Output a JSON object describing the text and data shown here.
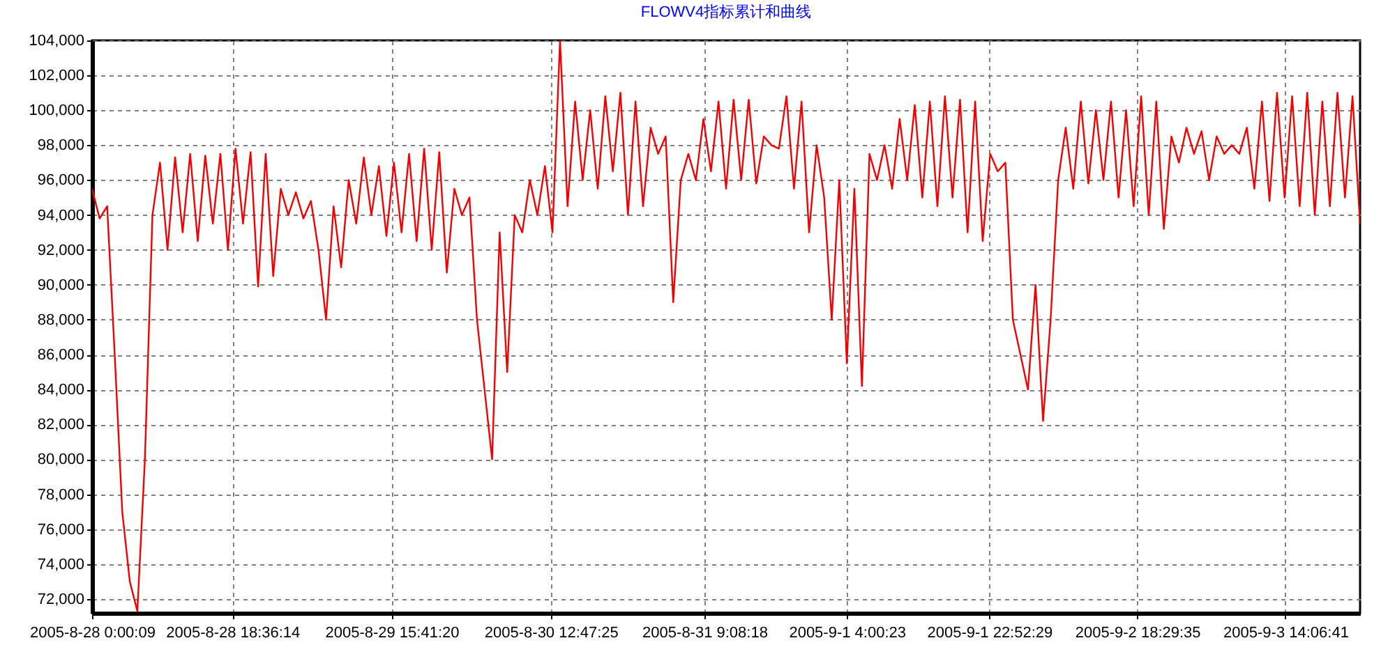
{
  "chart_data": {
    "type": "line",
    "title": "FLOWV4指标累计和曲线",
    "x": [
      "2005-08-28T00:00",
      "2005-08-28T01:00",
      "2005-08-28T02:00",
      "2005-08-28T03:00",
      "2005-08-28T04:00",
      "2005-08-28T05:00",
      "2005-08-28T06:00",
      "2005-08-28T07:00",
      "2005-08-28T08:00",
      "2005-08-28T09:00",
      "2005-08-28T10:00",
      "2005-08-28T11:00",
      "2005-08-28T12:00",
      "2005-08-28T13:00",
      "2005-08-28T14:00",
      "2005-08-28T15:00",
      "2005-08-28T16:00",
      "2005-08-28T17:00",
      "2005-08-28T18:00",
      "2005-08-28T19:00",
      "2005-08-28T20:00",
      "2005-08-28T21:00",
      "2005-08-28T22:00",
      "2005-08-28T23:00",
      "2005-08-29T00:00",
      "2005-08-29T01:00",
      "2005-08-29T02:00",
      "2005-08-29T03:00",
      "2005-08-29T04:00",
      "2005-08-29T05:00",
      "2005-08-29T06:00",
      "2005-08-29T07:00",
      "2005-08-29T08:00",
      "2005-08-29T09:00",
      "2005-08-29T10:00",
      "2005-08-29T11:00",
      "2005-08-29T12:00",
      "2005-08-29T13:00",
      "2005-08-29T14:00",
      "2005-08-29T15:00",
      "2005-08-29T16:00",
      "2005-08-29T17:00",
      "2005-08-29T18:00",
      "2005-08-29T19:00",
      "2005-08-29T20:00",
      "2005-08-29T21:00",
      "2005-08-29T22:00",
      "2005-08-29T23:00",
      "2005-08-30T00:00",
      "2005-08-30T01:00",
      "2005-08-30T02:00",
      "2005-08-30T03:00",
      "2005-08-30T04:00",
      "2005-08-30T05:00",
      "2005-08-30T06:00",
      "2005-08-30T07:00",
      "2005-08-30T08:00",
      "2005-08-30T09:00",
      "2005-08-30T10:00",
      "2005-08-30T11:00",
      "2005-08-30T12:00",
      "2005-08-30T13:00",
      "2005-08-30T14:00",
      "2005-08-30T15:00",
      "2005-08-30T16:00",
      "2005-08-30T17:00",
      "2005-08-30T18:00",
      "2005-08-30T19:00",
      "2005-08-30T20:00",
      "2005-08-30T21:00",
      "2005-08-30T22:00",
      "2005-08-30T23:00",
      "2005-08-31T00:00",
      "2005-08-31T01:00",
      "2005-08-31T02:00",
      "2005-08-31T03:00",
      "2005-08-31T04:00",
      "2005-08-31T05:00",
      "2005-08-31T06:00",
      "2005-08-31T07:00",
      "2005-08-31T08:00",
      "2005-08-31T09:00",
      "2005-08-31T10:00",
      "2005-08-31T11:00",
      "2005-08-31T12:00",
      "2005-08-31T13:00",
      "2005-08-31T14:00",
      "2005-08-31T15:00",
      "2005-08-31T16:00",
      "2005-08-31T17:00",
      "2005-08-31T18:00",
      "2005-08-31T19:00",
      "2005-08-31T20:00",
      "2005-08-31T21:00",
      "2005-08-31T22:00",
      "2005-08-31T23:00",
      "2005-09-01T00:00",
      "2005-09-01T01:00",
      "2005-09-01T02:00",
      "2005-09-01T03:00",
      "2005-09-01T04:00",
      "2005-09-01T05:00",
      "2005-09-01T06:00",
      "2005-09-01T07:00",
      "2005-09-01T08:00",
      "2005-09-01T09:00",
      "2005-09-01T10:00",
      "2005-09-01T11:00",
      "2005-09-01T12:00",
      "2005-09-01T13:00",
      "2005-09-01T14:00",
      "2005-09-01T15:00",
      "2005-09-01T16:00",
      "2005-09-01T17:00",
      "2005-09-01T18:00",
      "2005-09-01T19:00",
      "2005-09-01T20:00",
      "2005-09-01T21:00",
      "2005-09-01T22:00",
      "2005-09-01T23:00",
      "2005-09-02T00:00",
      "2005-09-02T01:00",
      "2005-09-02T02:00",
      "2005-09-02T03:00",
      "2005-09-02T04:00",
      "2005-09-02T05:00",
      "2005-09-02T06:00",
      "2005-09-02T07:00",
      "2005-09-02T08:00",
      "2005-09-02T09:00",
      "2005-09-02T10:00",
      "2005-09-02T11:00",
      "2005-09-02T12:00",
      "2005-09-02T13:00",
      "2005-09-02T14:00",
      "2005-09-02T15:00",
      "2005-09-02T16:00",
      "2005-09-02T17:00",
      "2005-09-02T18:00",
      "2005-09-02T19:00",
      "2005-09-02T20:00",
      "2005-09-02T21:00",
      "2005-09-02T22:00",
      "2005-09-02T23:00",
      "2005-09-03T00:00",
      "2005-09-03T01:00",
      "2005-09-03T02:00",
      "2005-09-03T03:00",
      "2005-09-03T04:00",
      "2005-09-03T05:00",
      "2005-09-03T06:00",
      "2005-09-03T07:00",
      "2005-09-03T08:00",
      "2005-09-03T09:00",
      "2005-09-03T10:00",
      "2005-09-03T11:00",
      "2005-09-03T12:00",
      "2005-09-03T13:00",
      "2005-09-03T14:00",
      "2005-09-03T15:00",
      "2005-09-03T16:00",
      "2005-09-03T17:00",
      "2005-09-03T18:00",
      "2005-09-03T19:00",
      "2005-09-03T20:00",
      "2005-09-03T21:00",
      "2005-09-03T22:00",
      "2005-09-03T23:00",
      "2005-09-04T00:00"
    ],
    "series": [
      {
        "color": "#f50000",
        "values": [
          95500,
          93800,
          94500,
          86000,
          77000,
          73000,
          71300,
          80000,
          94000,
          97000,
          92000,
          97300,
          93000,
          97500,
          92500,
          97400,
          93500,
          97500,
          92000,
          97800,
          93500,
          97600,
          89900,
          97500,
          90500,
          95500,
          94000,
          95300,
          93800,
          94800,
          92000,
          88000,
          94500,
          91000,
          96000,
          93500,
          97300,
          94000,
          96800,
          92800,
          97000,
          93000,
          97500,
          92500,
          97800,
          92000,
          97600,
          90700,
          95500,
          94000,
          95000,
          88000,
          84000,
          80000,
          93000,
          85000,
          94000,
          93000,
          96000,
          94000,
          96800,
          93000,
          104000,
          94500,
          100500,
          96000,
          100000,
          95500,
          100800,
          96500,
          101000,
          94000,
          100500,
          94500,
          99000,
          97500,
          98500,
          89000,
          96000,
          97500,
          96000,
          99500,
          96500,
          100500,
          95500,
          100600,
          96000,
          100600,
          95800,
          98500,
          98000,
          97800,
          100800,
          95500,
          100500,
          93000,
          98000,
          95000,
          88000,
          96000,
          85500,
          95500,
          84200,
          97500,
          96000,
          98000,
          95500,
          99500,
          96000,
          100300,
          95000,
          100500,
          94500,
          100800,
          95000,
          100600,
          93000,
          100500,
          92500,
          97500,
          96500,
          97000,
          88000,
          86000,
          84000,
          90000,
          82200,
          88000,
          96000,
          99000,
          95500,
          100500,
          95800,
          100000,
          96000,
          100500,
          95000,
          100000,
          94500,
          100800,
          94000,
          100500,
          93200,
          98500,
          97000,
          99000,
          97500,
          98800,
          96000,
          98500,
          97500,
          98000,
          97500,
          99000,
          95500,
          100500,
          94800,
          101000,
          95000,
          100800,
          94500,
          101000,
          94000,
          100500,
          94500,
          101000,
          95000,
          100800,
          93500
        ]
      }
    ],
    "xlim": [
      "2005-08-28T00:00",
      "2005-09-04T00:00:09"
    ],
    "xticks": [
      {
        "value": "2005-08-28T00:00:09",
        "label": "2005-8-28 0:00:09"
      },
      {
        "value": "2005-08-28T18:36:14",
        "label": "2005-8-28 18:36:14"
      },
      {
        "value": "2005-08-29T15:41:20",
        "label": "2005-8-29 15:41:20"
      },
      {
        "value": "2005-08-30T12:47:25",
        "label": "2005-8-30 12:47:25"
      },
      {
        "value": "2005-08-31T09:08:18",
        "label": "2005-8-31 9:08:18"
      },
      {
        "value": "2005-09-01T04:00:23",
        "label": "2005-9-1 4:00:23"
      },
      {
        "value": "2005-09-01T22:52:29",
        "label": "2005-9-1 22:52:29"
      },
      {
        "value": "2005-09-02T18:29:35",
        "label": "2005-9-2 18:29:35"
      },
      {
        "value": "2005-09-03T14:06:41",
        "label": "2005-9-3 14:06:41"
      }
    ],
    "ylim": [
      71200,
      104000
    ],
    "yticks": [
      {
        "value": 72000,
        "label": "72,000"
      },
      {
        "value": 74000,
        "label": "74,000"
      },
      {
        "value": 76000,
        "label": "76,000"
      },
      {
        "value": 78000,
        "label": "78,000"
      },
      {
        "value": 80000,
        "label": "80,000"
      },
      {
        "value": 82000,
        "label": "82,000"
      },
      {
        "value": 84000,
        "label": "84,000"
      },
      {
        "value": 86000,
        "label": "86,000"
      },
      {
        "value": 88000,
        "label": "88,000"
      },
      {
        "value": 90000,
        "label": "90,000"
      },
      {
        "value": 92000,
        "label": "92,000"
      },
      {
        "value": 94000,
        "label": "94,000"
      },
      {
        "value": 96000,
        "label": "96,000"
      },
      {
        "value": 98000,
        "label": "98,000"
      },
      {
        "value": 100000,
        "label": "100,000"
      },
      {
        "value": 102000,
        "label": "102,000"
      },
      {
        "value": 104000,
        "label": "104,000"
      }
    ],
    "grid": true
  }
}
